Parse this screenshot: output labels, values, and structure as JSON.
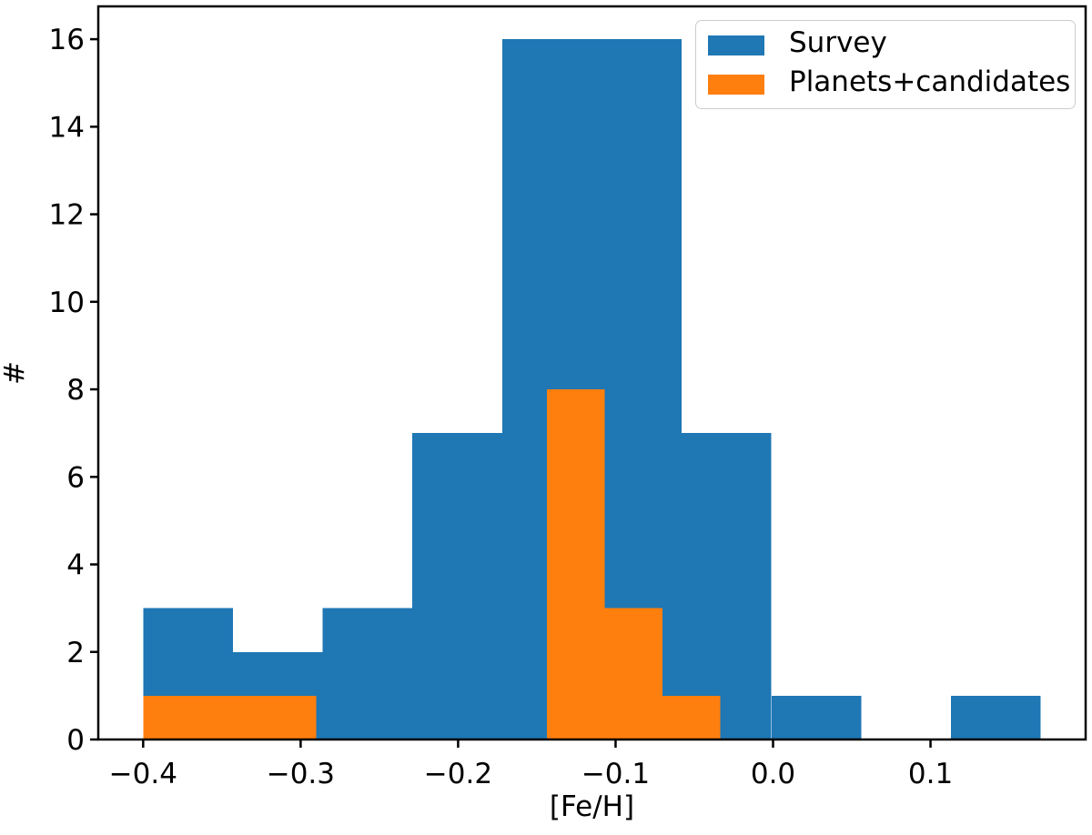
{
  "figure": {
    "background": "#ffffff",
    "frame_color": "#000000"
  },
  "chart_data": {
    "type": "bar",
    "subtype": "overlaid-histograms",
    "title": "",
    "xlabel": "[Fe/H]",
    "ylabel": "#",
    "xlim": [
      -0.4285,
      0.1985
    ],
    "ylim": [
      0,
      16.75
    ],
    "grid": false,
    "legend_position": "upper right",
    "xticks": {
      "values": [
        -0.4,
        -0.3,
        -0.2,
        -0.1,
        0.0,
        0.1
      ],
      "labels": [
        "−0.4",
        "−0.3",
        "−0.2",
        "−0.1",
        "0.0",
        "0.1"
      ]
    },
    "yticks": {
      "values": [
        0,
        2,
        4,
        6,
        8,
        10,
        12,
        14,
        16
      ],
      "labels": [
        "0",
        "2",
        "4",
        "6",
        "8",
        "10",
        "12",
        "14",
        "16"
      ]
    },
    "series": [
      {
        "name": "Survey",
        "color": "#1f77b4",
        "bin_edges": [
          -0.4,
          -0.343,
          -0.286,
          -0.229,
          -0.172,
          -0.115,
          -0.058,
          -0.001,
          0.056,
          0.113,
          0.17
        ],
        "counts": [
          3,
          2,
          3,
          7,
          16,
          16,
          7,
          1,
          0,
          1
        ]
      },
      {
        "name": "Planets+candidates",
        "color": "#ff7f0e",
        "bin_edges": [
          -0.4,
          -0.3634,
          -0.3267,
          -0.2901,
          -0.2534,
          -0.2168,
          -0.1801,
          -0.1435,
          -0.1068,
          -0.0702,
          -0.0335
        ],
        "counts": [
          1,
          1,
          1,
          0,
          0,
          0,
          0,
          8,
          3,
          1
        ]
      }
    ]
  }
}
